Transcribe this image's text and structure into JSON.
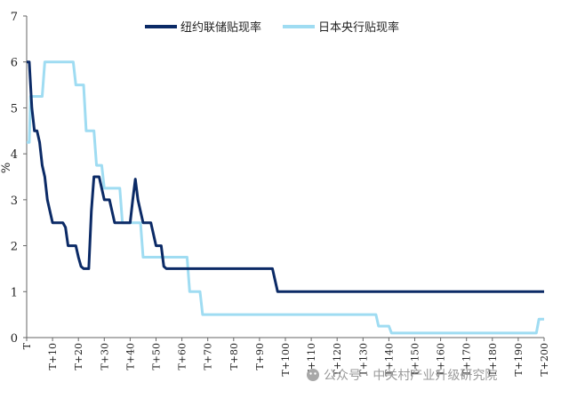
{
  "chart_data": {
    "type": "line",
    "ylabel": "%",
    "ylim": [
      0,
      7
    ],
    "yticks": [
      0,
      1,
      2,
      3,
      4,
      5,
      6,
      7
    ],
    "xlim": [
      0,
      200
    ],
    "xtick_values": [
      0,
      10,
      20,
      30,
      40,
      50,
      60,
      70,
      80,
      90,
      100,
      110,
      120,
      130,
      140,
      150,
      160,
      170,
      180,
      190,
      200
    ],
    "xtick_labels": [
      "T",
      "T+10",
      "T+20",
      "T+30",
      "T+40",
      "T+50",
      "T+60",
      "T+70",
      "T+80",
      "T+90",
      "T+100",
      "T+110",
      "T+120",
      "T+130",
      "T+140",
      "T+150",
      "T+160",
      "T+170",
      "T+180",
      "T+190",
      "T+200"
    ],
    "legend_position": "top",
    "series": [
      {
        "name": "纽约联储贴现率",
        "color": "#0b2a66",
        "points": [
          [
            0,
            6.0
          ],
          [
            1,
            6.0
          ],
          [
            2,
            5.0
          ],
          [
            3,
            4.5
          ],
          [
            4,
            4.5
          ],
          [
            5,
            4.25
          ],
          [
            6,
            3.75
          ],
          [
            7,
            3.5
          ],
          [
            8,
            3.0
          ],
          [
            9,
            2.75
          ],
          [
            10,
            2.5
          ],
          [
            14,
            2.5
          ],
          [
            15,
            2.4
          ],
          [
            16,
            2.0
          ],
          [
            19,
            2.0
          ],
          [
            20,
            1.75
          ],
          [
            21,
            1.55
          ],
          [
            22,
            1.5
          ],
          [
            24,
            1.5
          ],
          [
            25,
            2.75
          ],
          [
            26,
            3.5
          ],
          [
            28,
            3.5
          ],
          [
            29,
            3.25
          ],
          [
            30,
            3.0
          ],
          [
            32,
            3.0
          ],
          [
            33,
            2.75
          ],
          [
            34,
            2.5
          ],
          [
            40,
            2.5
          ],
          [
            41,
            3.0
          ],
          [
            42,
            3.45
          ],
          [
            43,
            3.0
          ],
          [
            44,
            2.75
          ],
          [
            45,
            2.5
          ],
          [
            48,
            2.5
          ],
          [
            49,
            2.25
          ],
          [
            50,
            2.0
          ],
          [
            52,
            2.0
          ],
          [
            53,
            1.55
          ],
          [
            54,
            1.5
          ],
          [
            95,
            1.5
          ],
          [
            96,
            1.25
          ],
          [
            97,
            1.0
          ],
          [
            200,
            1.0
          ]
        ]
      },
      {
        "name": "日本央行贴现率",
        "color": "#9fdcf2",
        "points": [
          [
            0,
            4.25
          ],
          [
            1,
            4.25
          ],
          [
            1.5,
            5.25
          ],
          [
            6,
            5.25
          ],
          [
            7,
            6.0
          ],
          [
            18,
            6.0
          ],
          [
            19,
            5.5
          ],
          [
            22,
            5.5
          ],
          [
            23,
            4.5
          ],
          [
            26,
            4.5
          ],
          [
            27,
            3.75
          ],
          [
            29,
            3.75
          ],
          [
            30,
            3.25
          ],
          [
            36,
            3.25
          ],
          [
            37,
            2.5
          ],
          [
            44,
            2.5
          ],
          [
            45,
            1.75
          ],
          [
            62,
            1.75
          ],
          [
            63,
            1.0
          ],
          [
            67,
            1.0
          ],
          [
            68,
            0.5
          ],
          [
            135,
            0.5
          ],
          [
            136,
            0.25
          ],
          [
            140,
            0.25
          ],
          [
            141,
            0.1
          ],
          [
            197,
            0.1
          ],
          [
            198,
            0.4
          ],
          [
            200,
            0.4
          ]
        ]
      }
    ]
  },
  "watermark": {
    "text": "公众号 · 中关村产业升级研究院"
  }
}
